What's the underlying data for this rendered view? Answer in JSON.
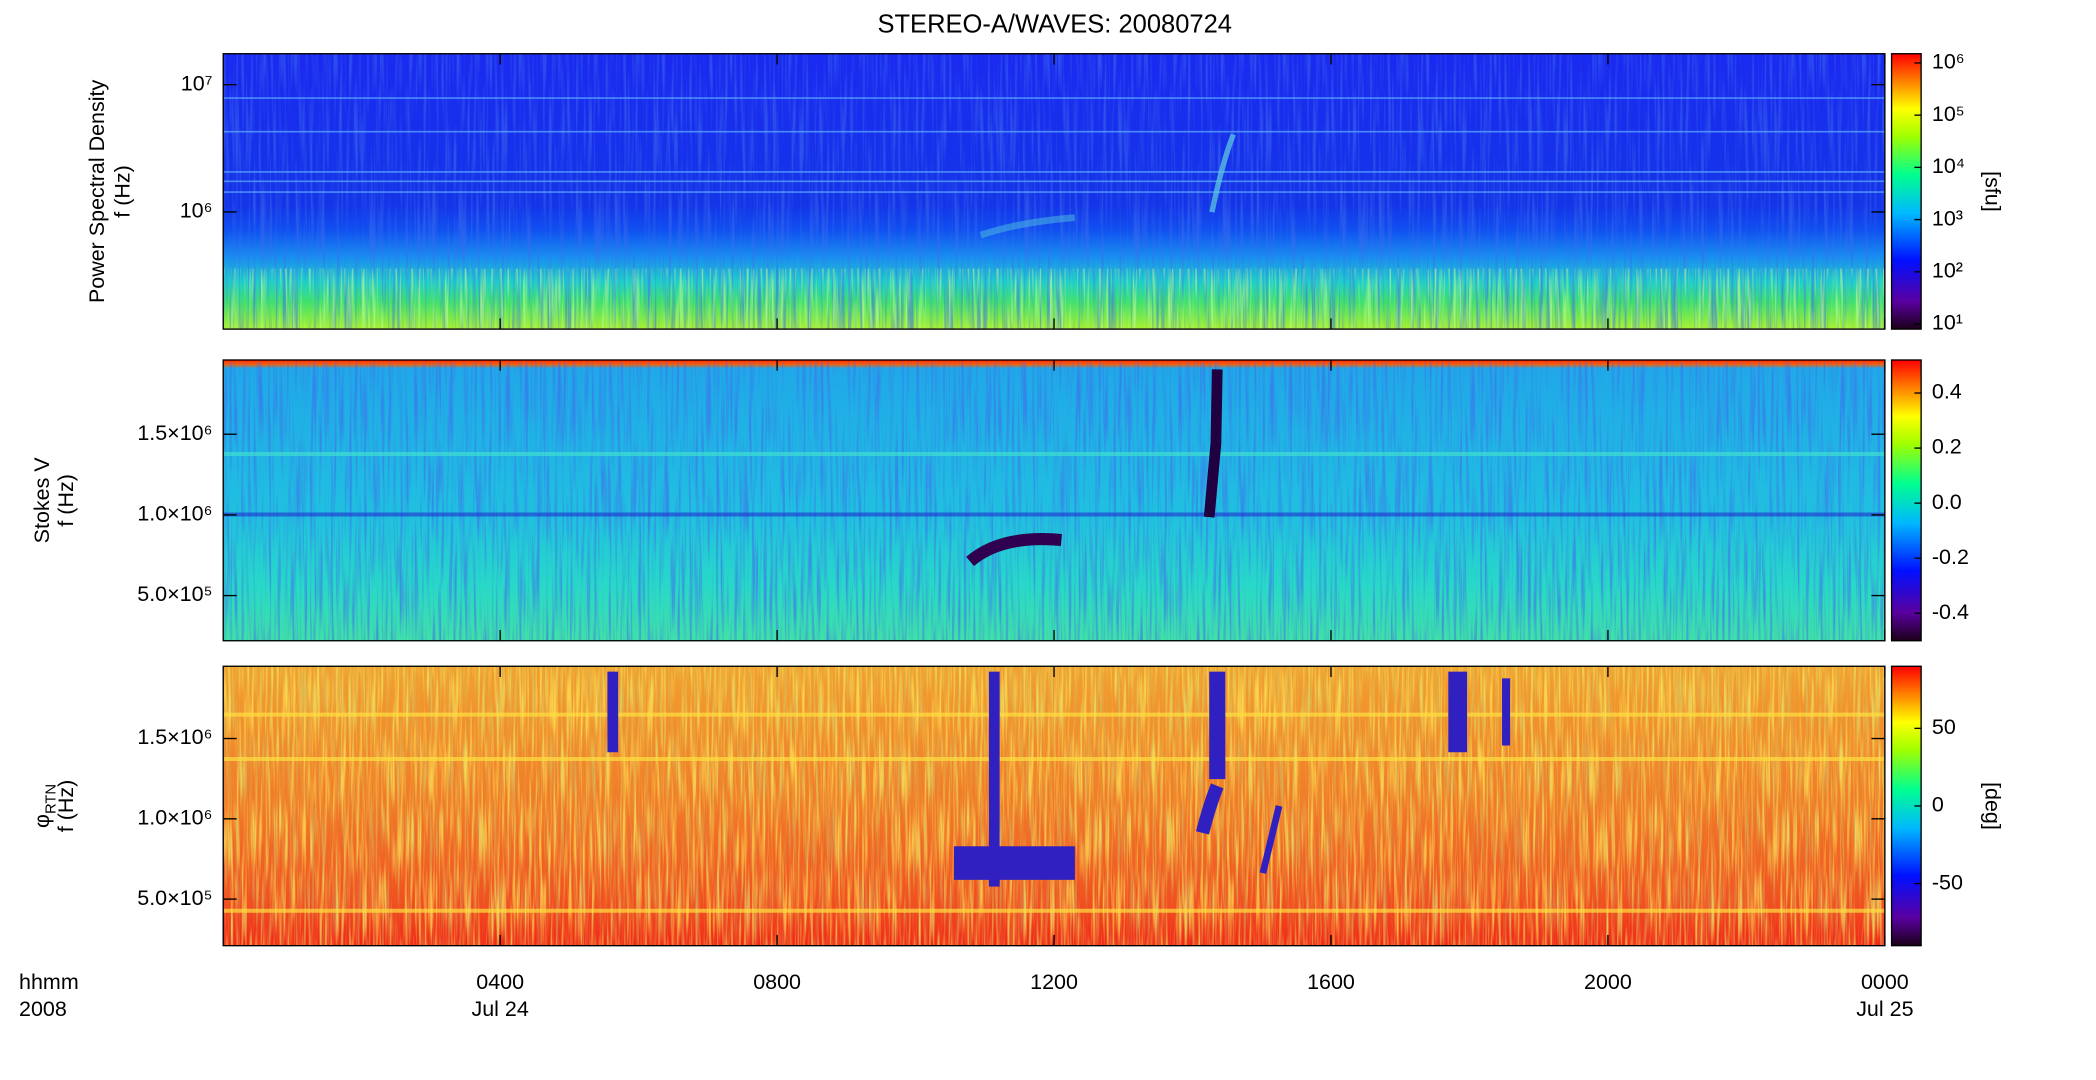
{
  "chart_data": {
    "type": "spectrogram-stack",
    "title": "STEREO-A/WAVES: 20080724",
    "xaxis": {
      "xlim": [
        0,
        24
      ],
      "xticks": [
        {
          "value": 4,
          "label": "0400"
        },
        {
          "value": 8,
          "label": "0800"
        },
        {
          "value": 12,
          "label": "1200"
        },
        {
          "value": 16,
          "label": "1600"
        },
        {
          "value": 20,
          "label": "2000"
        },
        {
          "value": 24,
          "label": "0000"
        }
      ],
      "date_labels": [
        {
          "value": 4,
          "label": "Jul 24"
        },
        {
          "value": 24,
          "label": "Jul 25"
        }
      ],
      "unit_label": "hhmm",
      "year_label": "2008"
    },
    "panels": [
      {
        "type": "spectrogram",
        "ylabel": [
          "Power Spectral Density",
          "f (Hz)"
        ],
        "log_y": true,
        "ylim": [
          120000,
          17500000
        ],
        "yticks": [
          {
            "value": 10000000,
            "label": "10⁷"
          },
          {
            "value": 1000000,
            "label": "10⁶"
          }
        ],
        "colorbar_log": true,
        "clim": [
          8,
          1500000
        ],
        "cticks": [
          {
            "value": 10,
            "label": "10¹"
          },
          {
            "value": 100,
            "label": "10²"
          },
          {
            "value": 1000,
            "label": "10³"
          },
          {
            "value": 10000,
            "label": "10⁴"
          },
          {
            "value": 100000,
            "label": "10⁵"
          },
          {
            "value": 1000000,
            "label": "10⁶"
          }
        ],
        "colorbar_label": "[sfu]"
      },
      {
        "type": "spectrogram",
        "ylabel": [
          "Stokes V",
          "f (Hz)"
        ],
        "log_y": false,
        "ylim": [
          220000,
          1960000
        ],
        "yticks": [
          {
            "value": 1500000,
            "label": "1.5×10⁶"
          },
          {
            "value": 1000000,
            "label": "1.0×10⁶"
          },
          {
            "value": 500000,
            "label": "5.0×10⁵"
          }
        ],
        "colorbar_log": false,
        "clim": [
          -0.5,
          0.52
        ],
        "cticks": [
          0.4,
          0.2,
          {
            "value": 0,
            "label": "0.0"
          },
          -0.2,
          -0.4
        ]
      },
      {
        "type": "spectrogram",
        "ylabel": [
          "φ",
          "f (Hz)"
        ],
        "ylabel_subscript": "RTN",
        "log_y": false,
        "ylim": [
          210000,
          1950000
        ],
        "yticks": [
          {
            "value": 1500000,
            "label": "1.5×10⁶"
          },
          {
            "value": 1000000,
            "label": "1.0×10⁶"
          },
          {
            "value": 500000,
            "label": "5.0×10⁵"
          }
        ],
        "colorbar_log": false,
        "clim": [
          -90,
          90
        ],
        "cticks": [
          50,
          0,
          -50
        ],
        "colorbar_label": "[deg]"
      }
    ]
  }
}
